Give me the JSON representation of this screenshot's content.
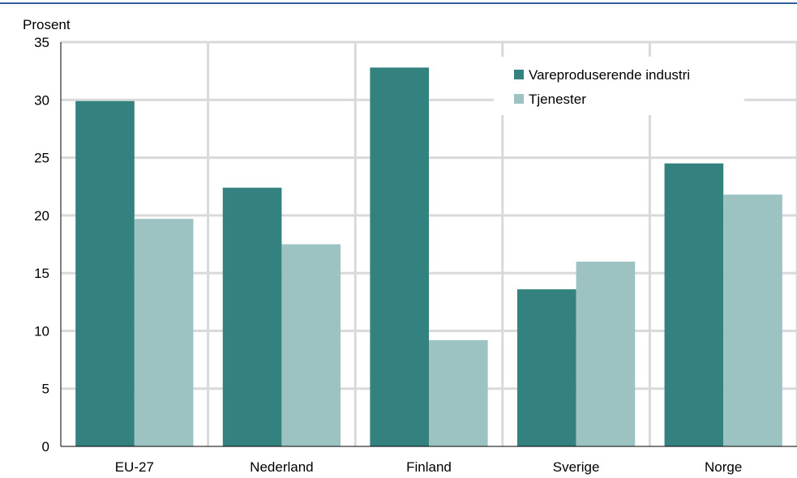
{
  "chart_data": {
    "type": "bar",
    "categories": [
      "EU-27",
      "Nederland",
      "Finland",
      "Sverige",
      "Norge"
    ],
    "series": [
      {
        "name": "Vareproduserende industri",
        "values": [
          29.9,
          22.4,
          32.8,
          13.6,
          24.5
        ],
        "color": "#33827f"
      },
      {
        "name": "Tjenester",
        "values": [
          19.7,
          17.5,
          9.2,
          16.0,
          21.8
        ],
        "color": "#9cc2c2"
      }
    ],
    "ylabel": "Prosent",
    "ylim": [
      0,
      35
    ],
    "yticks": [
      0,
      5,
      10,
      15,
      20,
      25,
      30,
      35
    ],
    "grid": true,
    "legend_position": "top-right",
    "top_rule_color": "#2e5f9a",
    "grid_color": "#d9d9d9"
  }
}
